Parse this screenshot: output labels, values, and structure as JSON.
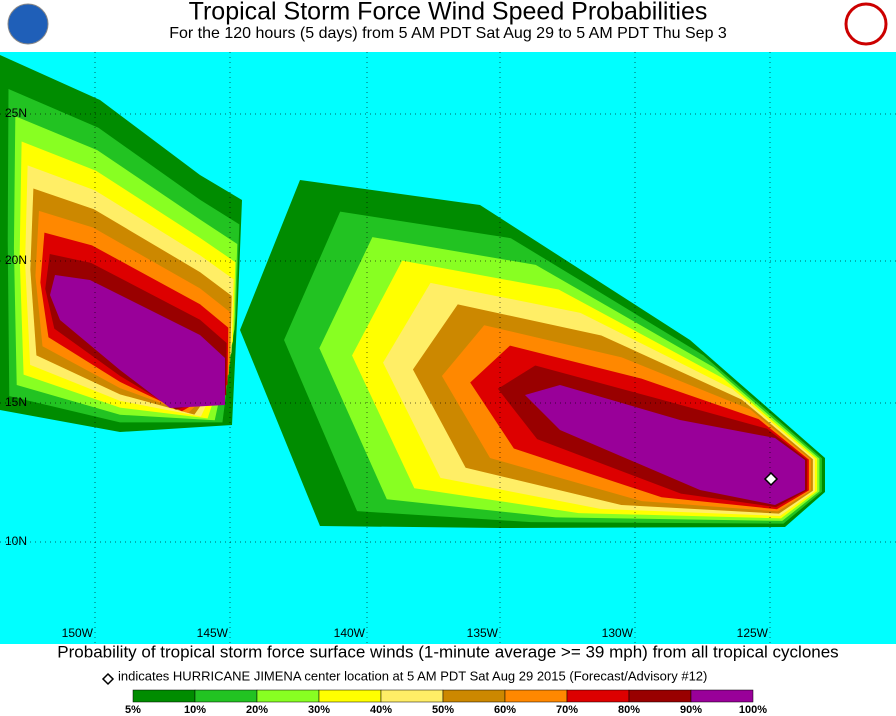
{
  "header": {
    "title": "Tropical Storm Force Wind Speed Probabilities",
    "subtitle": "For the 120 hours (5 days) from 5 AM PDT Sat Aug 29 to 5 AM PDT Thu Sep 3"
  },
  "map": {
    "latitude_labels": [
      "25N",
      "20N",
      "15N",
      "10N"
    ],
    "longitude_labels": [
      "150W",
      "145W",
      "140W",
      "135W",
      "130W",
      "125W"
    ]
  },
  "footer": {
    "caption": "Probability of tropical storm force surface winds (1-minute average >= 39 mph) from all tropical cyclones",
    "note": "indicates HURRICANE JIMENA center location at 5 AM PDT Sat Aug 29 2015 (Forecast/Advisory #12)"
  },
  "legend": {
    "colors": [
      "#008c00",
      "#22c322",
      "#88ff22",
      "#ffff00",
      "#ffee66",
      "#cc8800",
      "#ff8800",
      "#dd0000",
      "#990000",
      "#990099"
    ],
    "labels": [
      "5%",
      "10%",
      "20%",
      "30%",
      "40%",
      "50%",
      "60%",
      "70%",
      "80%",
      "90%",
      "100%"
    ]
  }
}
